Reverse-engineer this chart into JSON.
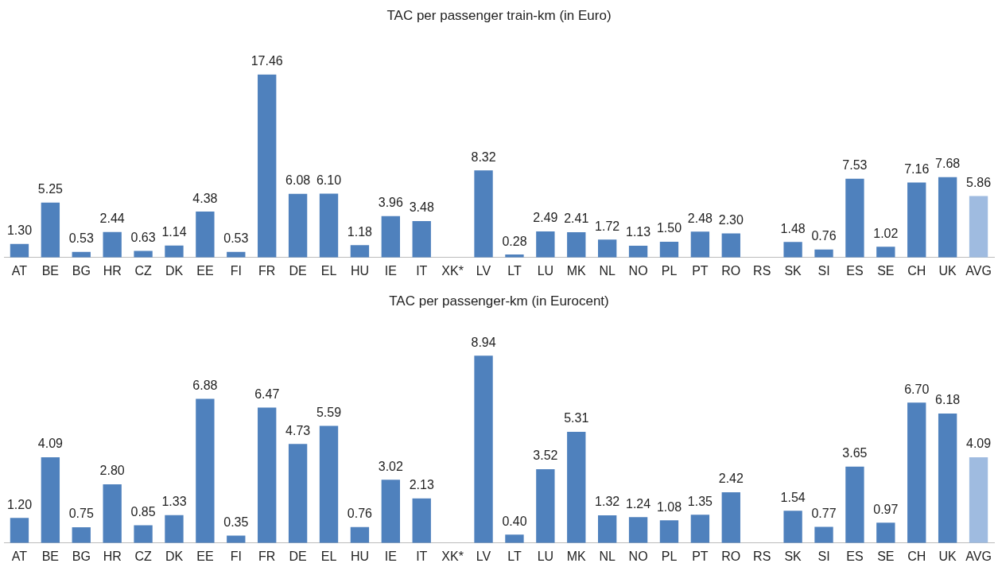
{
  "chart_data": [
    {
      "type": "bar",
      "title": "TAC per passenger train-km (in Euro)",
      "categories": [
        "AT",
        "BE",
        "BG",
        "HR",
        "CZ",
        "DK",
        "EE",
        "FI",
        "FR",
        "DE",
        "EL",
        "HU",
        "IE",
        "IT",
        "XK*",
        "LV",
        "LT",
        "LU",
        "MK",
        "NL",
        "NO",
        "PL",
        "PT",
        "RO",
        "RS",
        "SK",
        "SI",
        "ES",
        "SE",
        "CH",
        "UK",
        "AVG"
      ],
      "values": [
        1.3,
        5.25,
        0.53,
        2.44,
        0.63,
        1.14,
        4.38,
        0.53,
        17.46,
        6.08,
        6.1,
        1.18,
        3.96,
        3.48,
        null,
        8.32,
        0.28,
        2.49,
        2.41,
        1.72,
        1.13,
        1.5,
        2.48,
        2.3,
        null,
        1.48,
        0.76,
        7.53,
        1.02,
        7.16,
        7.68,
        5.86
      ],
      "value_labels": [
        "1.30",
        "5.25",
        "0.53",
        "2.44",
        "0.63",
        "1.14",
        "4.38",
        "0.53",
        "17.46",
        "6.08",
        "6.10",
        "1.18",
        "3.96",
        "3.48",
        null,
        "8.32",
        "0.28",
        "2.49",
        "2.41",
        "1.72",
        "1.13",
        "1.50",
        "2.48",
        "2.30",
        null,
        "1.48",
        "0.76",
        "7.53",
        "1.02",
        "7.16",
        "7.68",
        "5.86"
      ],
      "colors": [
        "#4f81bd",
        "#4f81bd",
        "#4f81bd",
        "#4f81bd",
        "#4f81bd",
        "#4f81bd",
        "#4f81bd",
        "#4f81bd",
        "#4f81bd",
        "#4f81bd",
        "#4f81bd",
        "#4f81bd",
        "#4f81bd",
        "#4f81bd",
        "#4f81bd",
        "#4f81bd",
        "#4f81bd",
        "#4f81bd",
        "#4f81bd",
        "#4f81bd",
        "#4f81bd",
        "#4f81bd",
        "#4f81bd",
        "#4f81bd",
        "#4f81bd",
        "#4f81bd",
        "#4f81bd",
        "#4f81bd",
        "#4f81bd",
        "#4f81bd",
        "#4f81bd",
        "#9fbbe0"
      ],
      "grid": false,
      "legend": false
    },
    {
      "type": "bar",
      "title": "TAC per passenger-km (in Eurocent)",
      "categories": [
        "AT",
        "BE",
        "BG",
        "HR",
        "CZ",
        "DK",
        "EE",
        "FI",
        "FR",
        "DE",
        "EL",
        "HU",
        "IE",
        "IT",
        "XK*",
        "LV",
        "LT",
        "LU",
        "MK",
        "NL",
        "NO",
        "PL",
        "PT",
        "RO",
        "RS",
        "SK",
        "SI",
        "ES",
        "SE",
        "CH",
        "UK",
        "AVG"
      ],
      "values": [
        1.2,
        4.09,
        0.75,
        2.8,
        0.85,
        1.33,
        6.88,
        0.35,
        6.47,
        4.73,
        5.59,
        0.76,
        3.02,
        2.13,
        null,
        8.94,
        0.4,
        3.52,
        5.31,
        1.32,
        1.24,
        1.08,
        1.35,
        2.42,
        null,
        1.54,
        0.77,
        3.65,
        0.97,
        6.7,
        6.18,
        4.09
      ],
      "value_labels": [
        "1.20",
        "4.09",
        "0.75",
        "2.80",
        "0.85",
        "1.33",
        "6.88",
        "0.35",
        "6.47",
        "4.73",
        "5.59",
        "0.76",
        "3.02",
        "2.13",
        null,
        "8.94",
        "0.40",
        "3.52",
        "5.31",
        "1.32",
        "1.24",
        "1.08",
        "1.35",
        "2.42",
        null,
        "1.54",
        "0.77",
        "3.65",
        "0.97",
        "6.70",
        "6.18",
        "4.09"
      ],
      "colors": [
        "#4f81bd",
        "#4f81bd",
        "#4f81bd",
        "#4f81bd",
        "#4f81bd",
        "#4f81bd",
        "#4f81bd",
        "#4f81bd",
        "#4f81bd",
        "#4f81bd",
        "#4f81bd",
        "#4f81bd",
        "#4f81bd",
        "#4f81bd",
        "#4f81bd",
        "#4f81bd",
        "#4f81bd",
        "#4f81bd",
        "#4f81bd",
        "#4f81bd",
        "#4f81bd",
        "#4f81bd",
        "#4f81bd",
        "#4f81bd",
        "#4f81bd",
        "#4f81bd",
        "#4f81bd",
        "#4f81bd",
        "#4f81bd",
        "#4f81bd",
        "#4f81bd",
        "#9fbbe0"
      ],
      "grid": false,
      "legend": false
    }
  ]
}
